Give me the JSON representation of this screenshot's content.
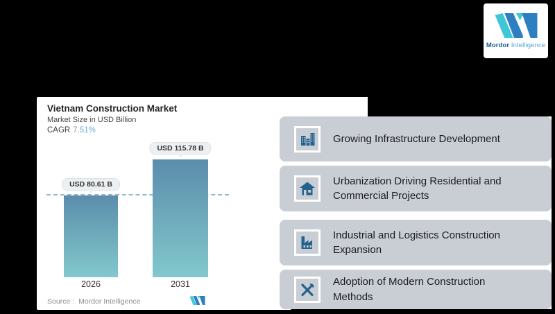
{
  "page": {
    "background": "#000000"
  },
  "brand_logo": {
    "name_bold": "Mordor",
    "name_light": "Intelligence",
    "teal": "#3ec7d6",
    "blue": "#2e7fc2"
  },
  "chart_data": {
    "type": "bar",
    "title": "Vietnam Construction Market",
    "subtitle": "Market Size in USD Billion",
    "cagr_label": "CAGR",
    "cagr_value": "7.51%",
    "categories": [
      "2026",
      "2031"
    ],
    "values": [
      80.61,
      115.78
    ],
    "value_labels": [
      "USD 80.61 B",
      "USD 115.78 B"
    ],
    "unit": "USD Billion",
    "dashed_reference_at": 80.61,
    "bar_gradient_top": "#5b8dac",
    "bar_gradient_bottom": "#82c8cc",
    "source_label": "Source :",
    "source_value": "Mordor Intelligence",
    "legend": false,
    "grid": false
  },
  "key_points": [
    {
      "icon": "buildings-icon",
      "text": "Growing Infrastructure Development"
    },
    {
      "icon": "home-icon",
      "text": "Urbanization Driving Residential and Commercial Projects"
    },
    {
      "icon": "factory-icon",
      "text": "Industrial and Logistics Construction Expansion"
    },
    {
      "icon": "tools-icon",
      "text": "Adoption of Modern Construction Methods"
    }
  ],
  "colors": {
    "card_bg": "#c9cdd4",
    "icon_blue": "#23638e",
    "cagr_value_color": "#72aed2",
    "dashed_line": "#93b9d0"
  }
}
